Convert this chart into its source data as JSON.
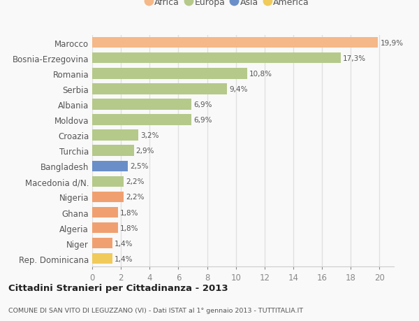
{
  "categories": [
    "Rep. Dominicana",
    "Niger",
    "Algeria",
    "Ghana",
    "Nigeria",
    "Macedonia d/N.",
    "Bangladesh",
    "Turchia",
    "Croazia",
    "Moldova",
    "Albania",
    "Serbia",
    "Romania",
    "Bosnia-Erzegovina",
    "Marocco"
  ],
  "values": [
    1.4,
    1.4,
    1.8,
    1.8,
    2.2,
    2.2,
    2.5,
    2.9,
    3.2,
    6.9,
    6.9,
    9.4,
    10.8,
    17.3,
    19.9
  ],
  "labels": [
    "1,4%",
    "1,4%",
    "1,8%",
    "1,8%",
    "2,2%",
    "2,2%",
    "2,5%",
    "2,9%",
    "3,2%",
    "6,9%",
    "6,9%",
    "9,4%",
    "10,8%",
    "17,3%",
    "19,9%"
  ],
  "colors": [
    "#f0ca5a",
    "#f0a070",
    "#f0a070",
    "#f0a070",
    "#f0a070",
    "#b5c98a",
    "#6a8fc8",
    "#b5c98a",
    "#b5c98a",
    "#b5c98a",
    "#b5c98a",
    "#b5c98a",
    "#b5c98a",
    "#b5c98a",
    "#f5b888"
  ],
  "legend_labels": [
    "Africa",
    "Europa",
    "Asia",
    "America"
  ],
  "legend_colors": [
    "#f5b888",
    "#b5c98a",
    "#6a8fc8",
    "#f0ca5a"
  ],
  "title": "Cittadini Stranieri per Cittadinanza - 2013",
  "subtitle": "COMUNE DI SAN VITO DI LEGUZZANO (VI) - Dati ISTAT al 1° gennaio 2013 - TUTTITALIA.IT",
  "xlim": [
    0,
    21
  ],
  "xticks": [
    0,
    2,
    4,
    6,
    8,
    10,
    12,
    14,
    16,
    18,
    20
  ],
  "background_color": "#f9f9f9",
  "grid_color": "#e0e0e0",
  "bar_height": 0.7
}
